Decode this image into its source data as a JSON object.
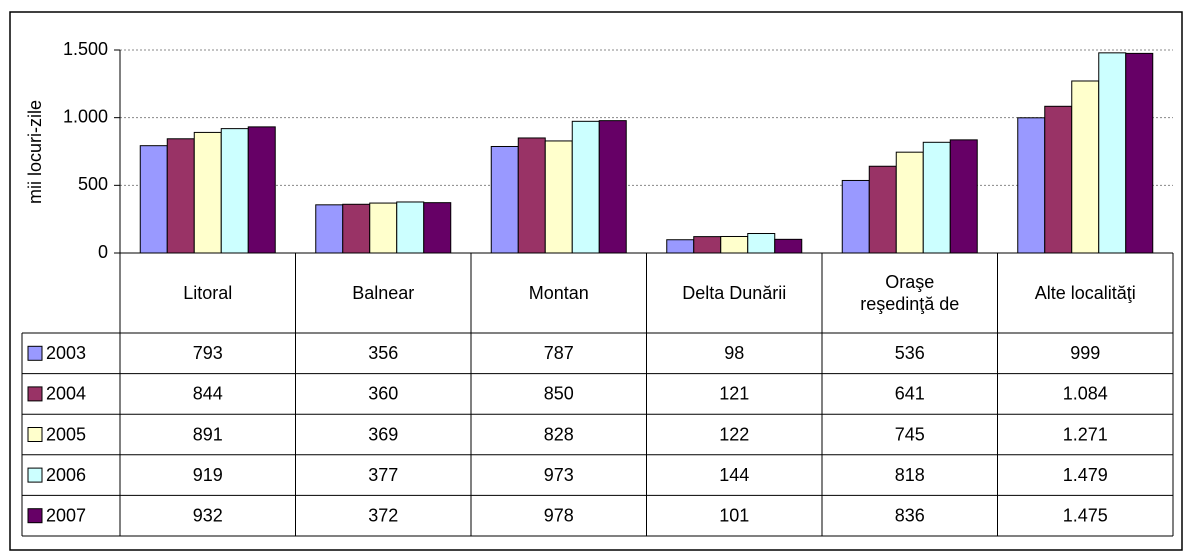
{
  "chart_data": {
    "type": "bar",
    "y_label": "mii locuri-zile",
    "categories": [
      "Litoral",
      "Balnear",
      "Montan",
      "Delta Dunării",
      "Oraşe\nreşedinţă de",
      "Alte localităţi"
    ],
    "series": [
      {
        "name": "2003",
        "color": "#9999ff",
        "values": [
          793,
          356,
          787,
          98,
          536,
          999
        ],
        "value_labels": [
          "793",
          "356",
          "787",
          "98",
          "536",
          "999"
        ]
      },
      {
        "name": "2004",
        "color": "#993366",
        "values": [
          844,
          360,
          850,
          121,
          641,
          1084
        ],
        "value_labels": [
          "844",
          "360",
          "850",
          "121",
          "641",
          "1.084"
        ]
      },
      {
        "name": "2005",
        "color": "#ffffcc",
        "values": [
          891,
          369,
          828,
          122,
          745,
          1271
        ],
        "value_labels": [
          "891",
          "369",
          "828",
          "122",
          "745",
          "1.271"
        ]
      },
      {
        "name": "2006",
        "color": "#ccffff",
        "values": [
          919,
          377,
          973,
          144,
          818,
          1479
        ],
        "value_labels": [
          "919",
          "377",
          "973",
          "144",
          "818",
          "1.479"
        ]
      },
      {
        "name": "2007",
        "color": "#660066",
        "values": [
          932,
          372,
          978,
          101,
          836,
          1475
        ],
        "value_labels": [
          "932",
          "372",
          "978",
          "101",
          "836",
          "1.475"
        ]
      }
    ],
    "ylim": [
      0,
      1500
    ],
    "yticks": [
      0,
      500,
      {
        "value": 1000,
        "label": "1.000"
      },
      {
        "value": 1500,
        "label": "1.500"
      }
    ],
    "grid": true
  }
}
